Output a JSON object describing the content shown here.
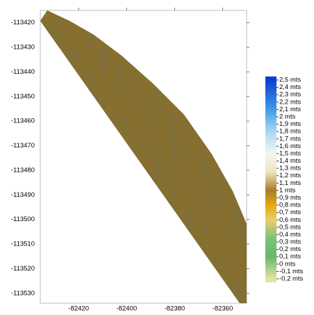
{
  "map_data": {
    "type": "raster",
    "xlim": [
      -82436,
      -82350
    ],
    "ylim": [
      -113415,
      -113534
    ],
    "xticks": [
      -82420,
      -82400,
      -82380,
      -82360
    ],
    "yticks": [
      -113420,
      -113430,
      -113440,
      -113450,
      -113460,
      -113470,
      -113480,
      -113490,
      -113500,
      -113510,
      -113520,
      -113530
    ],
    "colorbar": {
      "range": [
        -0.2,
        2.5
      ],
      "ticks": [
        {
          "value": 2.5,
          "label": "2,5 mts"
        },
        {
          "value": 2.4,
          "label": "2,4 mts"
        },
        {
          "value": 2.3,
          "label": "2,3 mts"
        },
        {
          "value": 2.2,
          "label": "2,2 mts"
        },
        {
          "value": 2.1,
          "label": "2,1 mts"
        },
        {
          "value": 2,
          "label": "2 mts"
        },
        {
          "value": 1.9,
          "label": "1,9 mts"
        },
        {
          "value": 1.8,
          "label": "1,8 mts"
        },
        {
          "value": 1.7,
          "label": "1,7 mts"
        },
        {
          "value": 1.6,
          "label": "1,6 mts"
        },
        {
          "value": 1.5,
          "label": "1,5 mts"
        },
        {
          "value": 1.4,
          "label": "1,4 mts"
        },
        {
          "value": 1.3,
          "label": "1,3 mts"
        },
        {
          "value": 1.2,
          "label": "1,2 mts"
        },
        {
          "value": 1.1,
          "label": "1,1 mts"
        },
        {
          "value": 1,
          "label": "1 mts"
        },
        {
          "value": 0.9,
          "label": "0,9 mts"
        },
        {
          "value": 0.8,
          "label": "0,8 mts"
        },
        {
          "value": 0.7,
          "label": "0,7 mts"
        },
        {
          "value": 0.6,
          "label": "0,6 mts"
        },
        {
          "value": 0.5,
          "label": "0,5 mts"
        },
        {
          "value": 0.4,
          "label": "0,4 mts"
        },
        {
          "value": 0.3,
          "label": "0,3 mts"
        },
        {
          "value": 0.2,
          "label": "0,2 mts"
        },
        {
          "value": 0.1,
          "label": "0,1 mts"
        },
        {
          "value": 0,
          "label": "0 mts"
        },
        {
          "value": -0.1,
          "label": "-0,1 mts"
        },
        {
          "value": -0.2,
          "label": "-0,2 mts"
        }
      ],
      "colors": [
        {
          "value": 2.5,
          "color": "#0a3fd0"
        },
        {
          "value": 2.1,
          "color": "#3f9be8"
        },
        {
          "value": 1.8,
          "color": "#a9d8f2"
        },
        {
          "value": 1.5,
          "color": "#f4f6f4"
        },
        {
          "value": 1.25,
          "color": "#f1e2bc"
        },
        {
          "value": 1.0,
          "color": "#a67c2a"
        },
        {
          "value": 0.8,
          "color": "#e6a810"
        },
        {
          "value": 0.6,
          "color": "#e9cf6a"
        },
        {
          "value": 0.35,
          "color": "#7fc07a"
        },
        {
          "value": 0.1,
          "color": "#66b86a"
        },
        {
          "value": -0.2,
          "color": "#dfe4a6"
        }
      ]
    }
  }
}
